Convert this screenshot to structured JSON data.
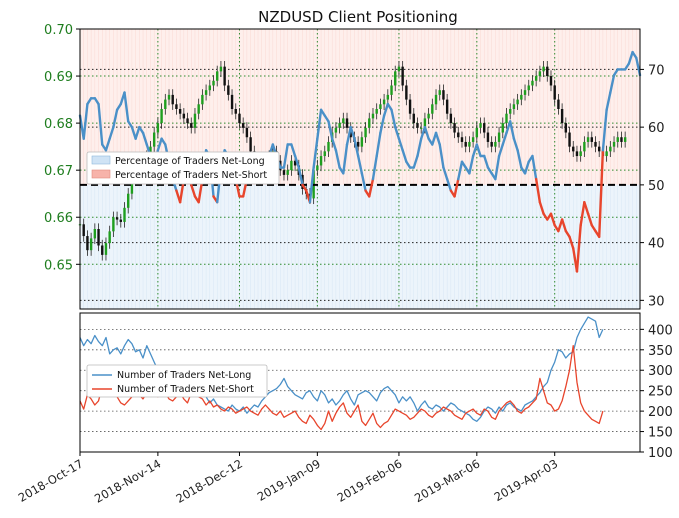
{
  "chart_data": [
    {
      "type": "line",
      "title": "NZDUSD Client Positioning",
      "price_axis": {
        "ticks": [
          0.65,
          0.66,
          0.67,
          0.68,
          0.69,
          0.7
        ],
        "tick_labels": [
          "0.65",
          "0.66",
          "0.67",
          "0.68",
          "0.69",
          "0.70"
        ],
        "ylim": [
          0.6405,
          0.7
        ],
        "color": "#1e7d1e"
      },
      "percent_axis": {
        "ticks": [
          30,
          40,
          50,
          60,
          70
        ],
        "tick_labels": [
          "30",
          "40",
          "50",
          "60",
          "70"
        ],
        "ylim": [
          28.5,
          77
        ]
      },
      "x_axis": {
        "tick_labels": [
          "2018-Oct-17",
          "2018-Nov-14",
          "2018-Dec-12",
          "2019-Jan-09",
          "2019-Feb-06",
          "2019-Mar-06",
          "2019-Apr-03"
        ],
        "grid": true
      },
      "legend": {
        "position": "left",
        "entries": [
          "Percentage of Traders Net-Long",
          "Percentage of Traders Net-Short"
        ]
      },
      "reference_line": 50,
      "long_color": "#4a90c8",
      "short_color": "#e8452c",
      "series": [
        {
          "name": "Percentage of Traders Net-Long",
          "values": [
            62,
            58,
            64,
            65,
            65,
            64,
            57,
            56,
            58,
            60,
            63,
            64,
            66,
            61,
            60,
            58,
            60,
            59,
            57,
            55,
            52,
            56,
            58,
            57,
            54,
            51,
            49,
            47,
            51,
            54,
            50,
            48,
            47,
            51,
            56,
            55,
            48,
            47,
            53,
            56,
            55,
            52,
            51,
            48,
            48,
            51,
            53,
            54,
            55,
            53,
            54,
            55,
            57,
            55,
            53,
            53,
            57,
            57,
            55,
            53,
            50,
            49,
            47,
            53,
            58,
            63,
            62,
            61,
            58,
            56,
            53,
            52,
            57,
            60,
            58,
            55,
            52,
            49,
            48,
            51,
            55,
            59,
            62,
            64,
            63,
            60,
            58,
            56,
            54,
            53,
            53,
            55,
            58,
            60,
            58,
            57,
            59,
            57,
            53,
            51,
            49,
            48,
            51,
            54,
            53,
            52,
            55,
            57,
            55,
            55,
            53,
            52,
            51,
            55,
            57,
            59,
            61,
            58,
            56,
            53,
            52,
            54,
            55,
            51,
            47,
            45,
            44,
            45,
            43,
            42,
            44,
            42,
            41,
            39,
            35,
            43,
            47,
            45,
            43,
            42,
            41,
            56,
            63,
            66,
            69,
            70,
            70,
            70,
            71,
            73,
            72,
            69
          ]
        }
      ]
    },
    {
      "type": "line",
      "y_axis": {
        "ticks": [
          100,
          150,
          200,
          250,
          300,
          350,
          400
        ],
        "tick_labels": [
          "100",
          "150",
          "200",
          "250",
          "300",
          "350",
          "400"
        ],
        "ylim": [
          100,
          440
        ]
      },
      "legend": {
        "position": "left",
        "entries": [
          "Number of Traders Net-Long",
          "Number of Traders Net-Short"
        ]
      },
      "series": [
        {
          "name": "Number of Traders Net-Long",
          "color": "#4a90c8",
          "values": [
            380,
            360,
            375,
            365,
            385,
            370,
            360,
            380,
            340,
            350,
            355,
            340,
            360,
            375,
            365,
            345,
            350,
            330,
            360,
            340,
            320,
            300,
            310,
            280,
            270,
            290,
            300,
            280,
            250,
            260,
            270,
            260,
            240,
            250,
            235,
            220,
            230,
            215,
            210,
            205,
            200,
            215,
            205,
            200,
            210,
            195,
            205,
            215,
            210,
            225,
            235,
            245,
            250,
            255,
            265,
            280,
            260,
            250,
            240,
            235,
            230,
            245,
            250,
            235,
            225,
            250,
            240,
            220,
            230,
            215,
            225,
            240,
            250,
            230,
            215,
            240,
            245,
            250,
            245,
            235,
            225,
            245,
            255,
            260,
            250,
            240,
            220,
            235,
            225,
            235,
            220,
            200,
            215,
            225,
            210,
            205,
            215,
            210,
            200,
            210,
            220,
            215,
            205,
            200,
            195,
            190,
            180,
            175,
            185,
            200,
            210,
            205,
            195,
            210,
            200,
            215,
            220,
            210,
            205,
            200,
            215,
            220,
            225,
            235,
            245,
            260,
            270,
            300,
            320,
            350,
            345,
            330,
            340,
            345,
            380,
            400,
            415,
            430,
            425,
            420,
            380,
            400
          ]
        },
        {
          "name": "Number of Traders Net-Short",
          "color": "#e8452c",
          "values": [
            225,
            205,
            240,
            230,
            215,
            225,
            260,
            270,
            255,
            245,
            235,
            220,
            215,
            225,
            235,
            245,
            240,
            230,
            245,
            255,
            240,
            235,
            250,
            245,
            230,
            225,
            235,
            245,
            230,
            220,
            245,
            240,
            235,
            230,
            215,
            225,
            210,
            215,
            205,
            200,
            210,
            205,
            195,
            200,
            205,
            210,
            200,
            195,
            190,
            205,
            215,
            205,
            195,
            190,
            200,
            185,
            190,
            195,
            200,
            185,
            175,
            170,
            190,
            180,
            165,
            155,
            170,
            200,
            175,
            195,
            210,
            220,
            195,
            185,
            200,
            215,
            175,
            165,
            180,
            195,
            170,
            160,
            170,
            175,
            190,
            205,
            200,
            195,
            190,
            180,
            185,
            195,
            205,
            200,
            190,
            185,
            195,
            200,
            210,
            205,
            200,
            190,
            185,
            180,
            195,
            200,
            205,
            195,
            190,
            205,
            200,
            185,
            180,
            200,
            210,
            220,
            225,
            215,
            200,
            195,
            205,
            210,
            220,
            230,
            280,
            250,
            220,
            215,
            200,
            205,
            225,
            260,
            300,
            360,
            270,
            220,
            200,
            190,
            180,
            175,
            170,
            200
          ]
        }
      ]
    }
  ],
  "price_series": {
    "values": [
      0.6585,
      0.656,
      0.653,
      0.6555,
      0.6575,
      0.654,
      0.652,
      0.6545,
      0.657,
      0.66,
      0.6595,
      0.659,
      0.662,
      0.665,
      0.668,
      0.67,
      0.672,
      0.671,
      0.673,
      0.675,
      0.678,
      0.68,
      0.683,
      0.685,
      0.686,
      0.684,
      0.683,
      0.682,
      0.681,
      0.68,
      0.679,
      0.682,
      0.684,
      0.686,
      0.687,
      0.688,
      0.689,
      0.691,
      0.692,
      0.688,
      0.686,
      0.683,
      0.682,
      0.68,
      0.679,
      0.677,
      0.674,
      0.672,
      0.67,
      0.671,
      0.672,
      0.673,
      0.674,
      0.672,
      0.67,
      0.669,
      0.67,
      0.672,
      0.671,
      0.669,
      0.666,
      0.665,
      0.664,
      0.67,
      0.671,
      0.673,
      0.674,
      0.676,
      0.678,
      0.679,
      0.68,
      0.681,
      0.679,
      0.677,
      0.676,
      0.675,
      0.677,
      0.679,
      0.681,
      0.682,
      0.683,
      0.684,
      0.685,
      0.686,
      0.688,
      0.691,
      0.692,
      0.688,
      0.685,
      0.682,
      0.68,
      0.679,
      0.679,
      0.681,
      0.682,
      0.684,
      0.686,
      0.687,
      0.685,
      0.682,
      0.68,
      0.678,
      0.677,
      0.676,
      0.675,
      0.676,
      0.677,
      0.679,
      0.68,
      0.678,
      0.676,
      0.675,
      0.676,
      0.678,
      0.68,
      0.682,
      0.683,
      0.684,
      0.685,
      0.686,
      0.687,
      0.688,
      0.689,
      0.69,
      0.691,
      0.692,
      0.69,
      0.688,
      0.685,
      0.683,
      0.68,
      0.678,
      0.675,
      0.674,
      0.673,
      0.674,
      0.676,
      0.677,
      0.676,
      0.675,
      0.674,
      0.673,
      0.674,
      0.675,
      0.676,
      0.677,
      0.676,
      0.677
    ]
  }
}
